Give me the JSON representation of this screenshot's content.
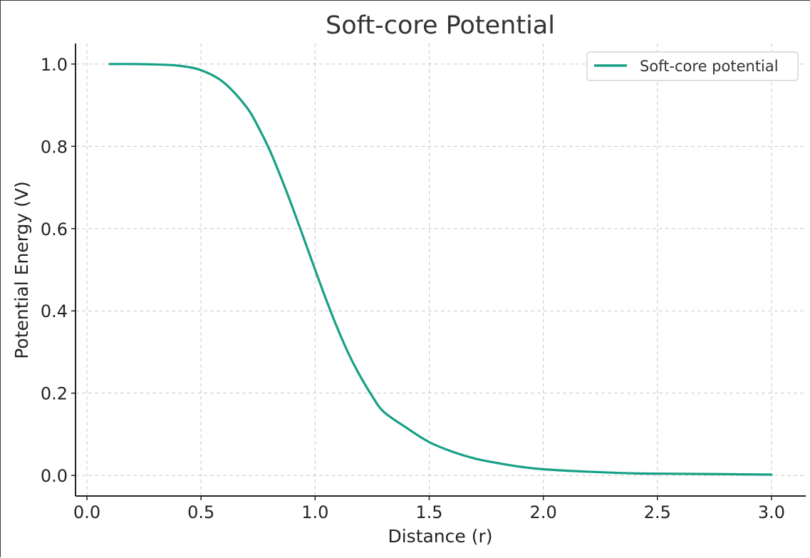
{
  "chart_data": {
    "type": "line",
    "title": "Soft-core Potential",
    "xlabel": "Distance (r)",
    "ylabel": "Potential Energy (V)",
    "xlim": [
      -0.05,
      3.15
    ],
    "ylim": [
      -0.05,
      1.05
    ],
    "xticks": [
      0.0,
      0.5,
      1.0,
      1.5,
      2.0,
      2.5,
      3.0
    ],
    "xtick_labels": [
      "0.0",
      "0.5",
      "1.0",
      "1.5",
      "2.0",
      "2.5",
      "3.0"
    ],
    "yticks": [
      0.0,
      0.2,
      0.4,
      0.6,
      0.8,
      1.0
    ],
    "ytick_labels": [
      "0.0",
      "0.2",
      "0.4",
      "0.6",
      "0.8",
      "1.0"
    ],
    "grid": true,
    "legend_position": "top-right",
    "series": [
      {
        "name": "Soft-core potential",
        "color": "#16a085",
        "x": [
          0.1,
          0.2,
          0.3,
          0.4,
          0.5,
          0.6,
          0.7,
          0.75,
          0.8,
          0.85,
          0.9,
          0.95,
          1.0,
          1.05,
          1.1,
          1.15,
          1.2,
          1.25,
          1.3,
          1.4,
          1.5,
          1.6,
          1.7,
          1.8,
          1.9,
          2.0,
          2.2,
          2.4,
          2.6,
          2.8,
          3.0
        ],
        "y": [
          1.0,
          1.0,
          0.999,
          0.996,
          0.985,
          0.955,
          0.895,
          0.848,
          0.792,
          0.725,
          0.653,
          0.577,
          0.5,
          0.425,
          0.355,
          0.292,
          0.239,
          0.193,
          0.155,
          0.116,
          0.081,
          0.058,
          0.041,
          0.03,
          0.021,
          0.015,
          0.009,
          0.005,
          0.004,
          0.003,
          0.002
        ]
      }
    ]
  }
}
